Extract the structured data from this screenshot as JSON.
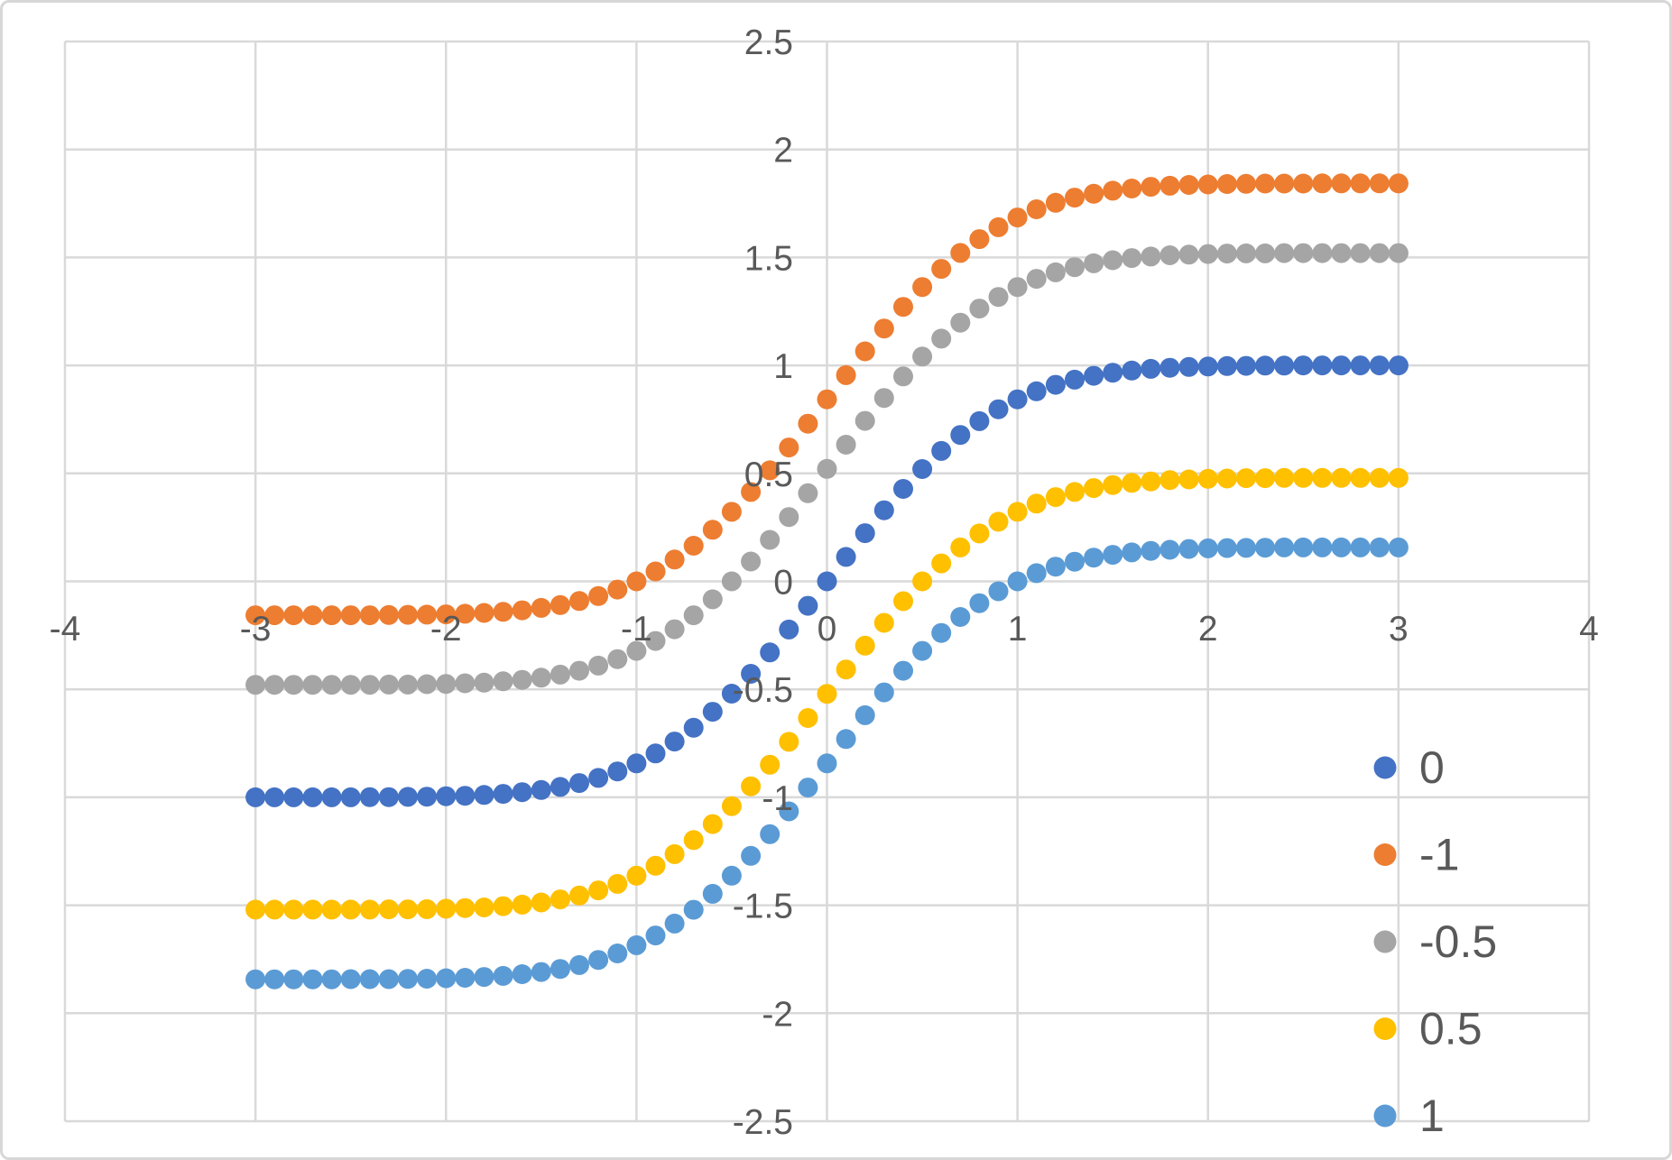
{
  "chart_data": {
    "type": "scatter",
    "title": "",
    "xlabel": "",
    "ylabel": "",
    "grid": true,
    "marker": "circle",
    "x_axis": {
      "min": -4,
      "max": 4,
      "step": 1,
      "tick_values": [
        -4,
        -3,
        -2,
        -1,
        0,
        1,
        2,
        3,
        4
      ],
      "tick_labels": [
        "-4",
        "-3",
        "-2",
        "-1",
        "0",
        "1",
        "2",
        "3",
        "4"
      ]
    },
    "y_axis": {
      "min": -2.5,
      "max": 2.5,
      "step": 0.5,
      "tick_values": [
        2.5,
        2,
        1.5,
        1,
        0.5,
        0,
        -0.5,
        -1,
        -1.5,
        -2,
        -2.5
      ],
      "tick_labels": [
        "2.5",
        "2",
        "1.5",
        "1",
        "0.5",
        "0",
        "-0.5",
        "-1",
        "-1.5",
        "-2",
        "-2.5"
      ]
    },
    "legend": {
      "position": "inside-right-lower",
      "entries": [
        "0",
        "-1",
        "-0.5",
        "0.5",
        "1"
      ]
    },
    "x": [
      -3,
      -2.9,
      -2.8,
      -2.7,
      -2.6,
      -2.5,
      -2.4,
      -2.3,
      -2.2,
      -2.1,
      -2,
      -1.9,
      -1.8,
      -1.7,
      -1.6,
      -1.5,
      -1.4,
      -1.3,
      -1.2,
      -1.1,
      -1,
      -0.9,
      -0.8,
      -0.7,
      -0.6,
      -0.5,
      -0.4,
      -0.3,
      -0.2,
      -0.1,
      0,
      0.1,
      0.2,
      0.3,
      0.4,
      0.5,
      0.6,
      0.7,
      0.8,
      0.9,
      1,
      1.1,
      1.2,
      1.3,
      1.4,
      1.5,
      1.6,
      1.7,
      1.8,
      1.9,
      2,
      2.1,
      2.2,
      2.3,
      2.4,
      2.5,
      2.6,
      2.7,
      2.8,
      2.9,
      3
    ],
    "series": [
      {
        "name": "0",
        "color": "#4472C4",
        "y": [
          -1,
          -1,
          -1,
          -1,
          -1,
          -1,
          -0.999,
          -0.999,
          -0.998,
          -0.997,
          -0.995,
          -0.993,
          -0.989,
          -0.984,
          -0.976,
          -0.966,
          -0.952,
          -0.934,
          -0.91,
          -0.88,
          -0.843,
          -0.797,
          -0.742,
          -0.678,
          -0.604,
          -0.52,
          -0.428,
          -0.329,
          -0.223,
          -0.113,
          0,
          0.113,
          0.223,
          0.329,
          0.428,
          0.52,
          0.604,
          0.678,
          0.742,
          0.797,
          0.843,
          0.88,
          0.91,
          0.934,
          0.952,
          0.966,
          0.976,
          0.984,
          0.989,
          0.993,
          0.995,
          0.997,
          0.998,
          0.999,
          0.999,
          1,
          1,
          1,
          1,
          1,
          1
        ]
      },
      {
        "name": "-1",
        "color": "#ED7D31",
        "y": [
          -0.157,
          -0.157,
          -0.157,
          -0.157,
          -0.157,
          -0.157,
          -0.157,
          -0.156,
          -0.155,
          -0.154,
          -0.153,
          -0.15,
          -0.146,
          -0.141,
          -0.134,
          -0.123,
          -0.11,
          -0.091,
          -0.068,
          -0.038,
          0,
          0.046,
          0.101,
          0.165,
          0.239,
          0.322,
          0.414,
          0.514,
          0.62,
          0.73,
          0.843,
          0.955,
          1.065,
          1.171,
          1.271,
          1.363,
          1.447,
          1.521,
          1.585,
          1.64,
          1.685,
          1.723,
          1.753,
          1.777,
          1.795,
          1.809,
          1.819,
          1.827,
          1.832,
          1.836,
          1.838,
          1.84,
          1.841,
          1.842,
          1.842,
          1.842,
          1.843,
          1.843,
          1.843,
          1.843,
          1.843
        ]
      },
      {
        "name": "-0.5",
        "color": "#A5A5A5",
        "y": [
          -0.479,
          -0.479,
          -0.479,
          -0.479,
          -0.479,
          -0.479,
          -0.479,
          -0.478,
          -0.478,
          -0.476,
          -0.475,
          -0.472,
          -0.469,
          -0.463,
          -0.456,
          -0.446,
          -0.432,
          -0.414,
          -0.39,
          -0.36,
          -0.322,
          -0.276,
          -0.222,
          -0.157,
          -0.083,
          0,
          0.092,
          0.192,
          0.298,
          0.408,
          0.521,
          0.633,
          0.743,
          0.849,
          0.949,
          1.041,
          1.124,
          1.198,
          1.263,
          1.317,
          1.363,
          1.401,
          1.431,
          1.455,
          1.473,
          1.487,
          1.497,
          1.504,
          1.51,
          1.513,
          1.516,
          1.518,
          1.519,
          1.519,
          1.52,
          1.52,
          1.52,
          1.52,
          1.52,
          1.52,
          1.52
        ]
      },
      {
        "name": "0.5",
        "color": "#FFC000",
        "y": [
          -1.52,
          -1.52,
          -1.52,
          -1.52,
          -1.52,
          -1.52,
          -1.52,
          -1.519,
          -1.519,
          -1.518,
          -1.516,
          -1.513,
          -1.51,
          -1.504,
          -1.497,
          -1.487,
          -1.473,
          -1.455,
          -1.431,
          -1.401,
          -1.363,
          -1.317,
          -1.263,
          -1.198,
          -1.124,
          -1.041,
          -0.949,
          -0.849,
          -0.743,
          -0.633,
          -0.521,
          -0.408,
          -0.298,
          -0.192,
          -0.092,
          0,
          0.083,
          0.157,
          0.222,
          0.276,
          0.322,
          0.36,
          0.39,
          0.414,
          0.432,
          0.446,
          0.456,
          0.463,
          0.469,
          0.472,
          0.475,
          0.476,
          0.478,
          0.478,
          0.479,
          0.479,
          0.479,
          0.479,
          0.479,
          0.479,
          0.479
        ]
      },
      {
        "name": "1",
        "color": "#5B9BD5",
        "y": [
          -1.843,
          -1.843,
          -1.843,
          -1.843,
          -1.843,
          -1.842,
          -1.842,
          -1.842,
          -1.841,
          -1.84,
          -1.838,
          -1.836,
          -1.832,
          -1.827,
          -1.819,
          -1.809,
          -1.795,
          -1.777,
          -1.753,
          -1.723,
          -1.685,
          -1.64,
          -1.585,
          -1.521,
          -1.447,
          -1.363,
          -1.271,
          -1.171,
          -1.065,
          -0.955,
          -0.843,
          -0.73,
          -0.62,
          -0.514,
          -0.414,
          -0.322,
          -0.239,
          -0.165,
          -0.101,
          -0.046,
          0,
          0.038,
          0.068,
          0.091,
          0.11,
          0.123,
          0.134,
          0.141,
          0.146,
          0.15,
          0.153,
          0.154,
          0.155,
          0.156,
          0.157,
          0.157,
          0.157,
          0.157,
          0.157,
          0.157,
          0.157
        ]
      }
    ]
  },
  "styles": {
    "background": "#FFFFFF",
    "grid_color": "#D9D9D9",
    "border_color": "#D7D7D7",
    "tick_label_color": "#595959",
    "legend_label_color": "#595959"
  }
}
